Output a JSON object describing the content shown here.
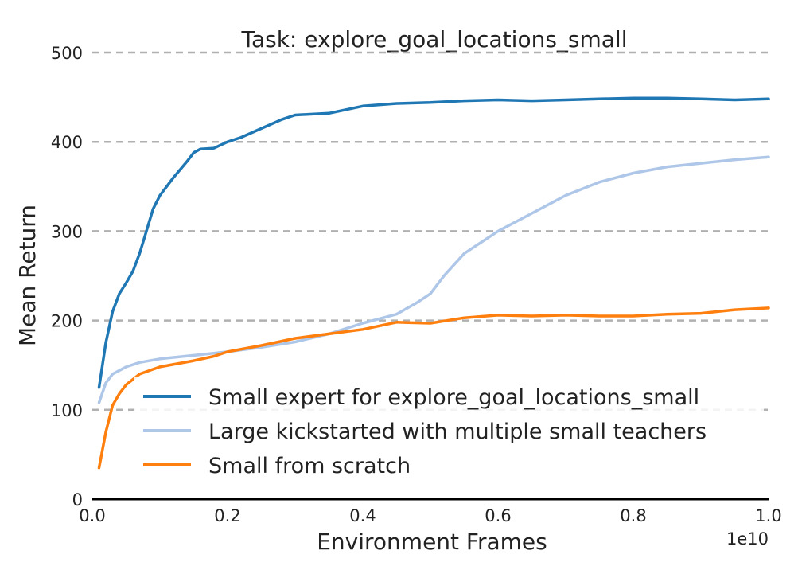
{
  "chart_data": {
    "type": "line",
    "title": "Task: explore_goal_locations_small",
    "xlabel": "Environment Frames",
    "ylabel": "Mean Return",
    "x_offset_label": "1e10",
    "xlim": [
      0.0,
      1.0
    ],
    "ylim": [
      0,
      500
    ],
    "xticks": [
      0.0,
      0.2,
      0.4,
      0.6,
      0.8,
      1.0
    ],
    "xtick_labels": [
      "0.0",
      "0.2",
      "0.4",
      "0.6",
      "0.8",
      "1.0"
    ],
    "yticks": [
      0,
      100,
      200,
      300,
      400,
      500
    ],
    "ytick_labels": [
      "0",
      "100",
      "200",
      "300",
      "400",
      "500"
    ],
    "grid": "horizontal dashed",
    "legend_position": "lower-right",
    "series": [
      {
        "name": "Small expert for explore_goal_locations_small",
        "color": "#1f77b4",
        "x": [
          0.01,
          0.02,
          0.03,
          0.04,
          0.05,
          0.06,
          0.07,
          0.08,
          0.09,
          0.1,
          0.12,
          0.14,
          0.15,
          0.16,
          0.18,
          0.2,
          0.22,
          0.25,
          0.28,
          0.3,
          0.35,
          0.4,
          0.45,
          0.5,
          0.55,
          0.6,
          0.65,
          0.7,
          0.75,
          0.8,
          0.85,
          0.9,
          0.95,
          1.0
        ],
        "y": [
          125,
          175,
          210,
          230,
          242,
          255,
          275,
          300,
          325,
          340,
          360,
          378,
          388,
          392,
          393,
          400,
          405,
          415,
          425,
          430,
          432,
          440,
          443,
          444,
          446,
          447,
          446,
          447,
          448,
          449,
          449,
          448,
          447,
          448
        ]
      },
      {
        "name": "Large kickstarted with multiple small teachers",
        "color": "#aec7e8",
        "x": [
          0.01,
          0.02,
          0.03,
          0.05,
          0.07,
          0.1,
          0.15,
          0.2,
          0.25,
          0.3,
          0.35,
          0.4,
          0.45,
          0.48,
          0.5,
          0.52,
          0.55,
          0.6,
          0.65,
          0.7,
          0.75,
          0.8,
          0.85,
          0.9,
          0.95,
          1.0
        ],
        "y": [
          108,
          130,
          140,
          148,
          153,
          157,
          161,
          165,
          170,
          176,
          185,
          197,
          207,
          220,
          230,
          250,
          275,
          300,
          320,
          340,
          355,
          365,
          372,
          376,
          380,
          383
        ]
      },
      {
        "name": "Small from scratch",
        "color": "#ff7f0e",
        "x": [
          0.01,
          0.02,
          0.03,
          0.04,
          0.05,
          0.07,
          0.1,
          0.15,
          0.18,
          0.2,
          0.25,
          0.3,
          0.35,
          0.4,
          0.45,
          0.5,
          0.55,
          0.6,
          0.65,
          0.7,
          0.75,
          0.8,
          0.85,
          0.9,
          0.95,
          1.0
        ],
        "y": [
          35,
          75,
          105,
          118,
          128,
          140,
          148,
          155,
          160,
          165,
          172,
          180,
          185,
          190,
          198,
          197,
          203,
          206,
          205,
          206,
          205,
          205,
          207,
          208,
          212,
          214
        ]
      }
    ]
  }
}
